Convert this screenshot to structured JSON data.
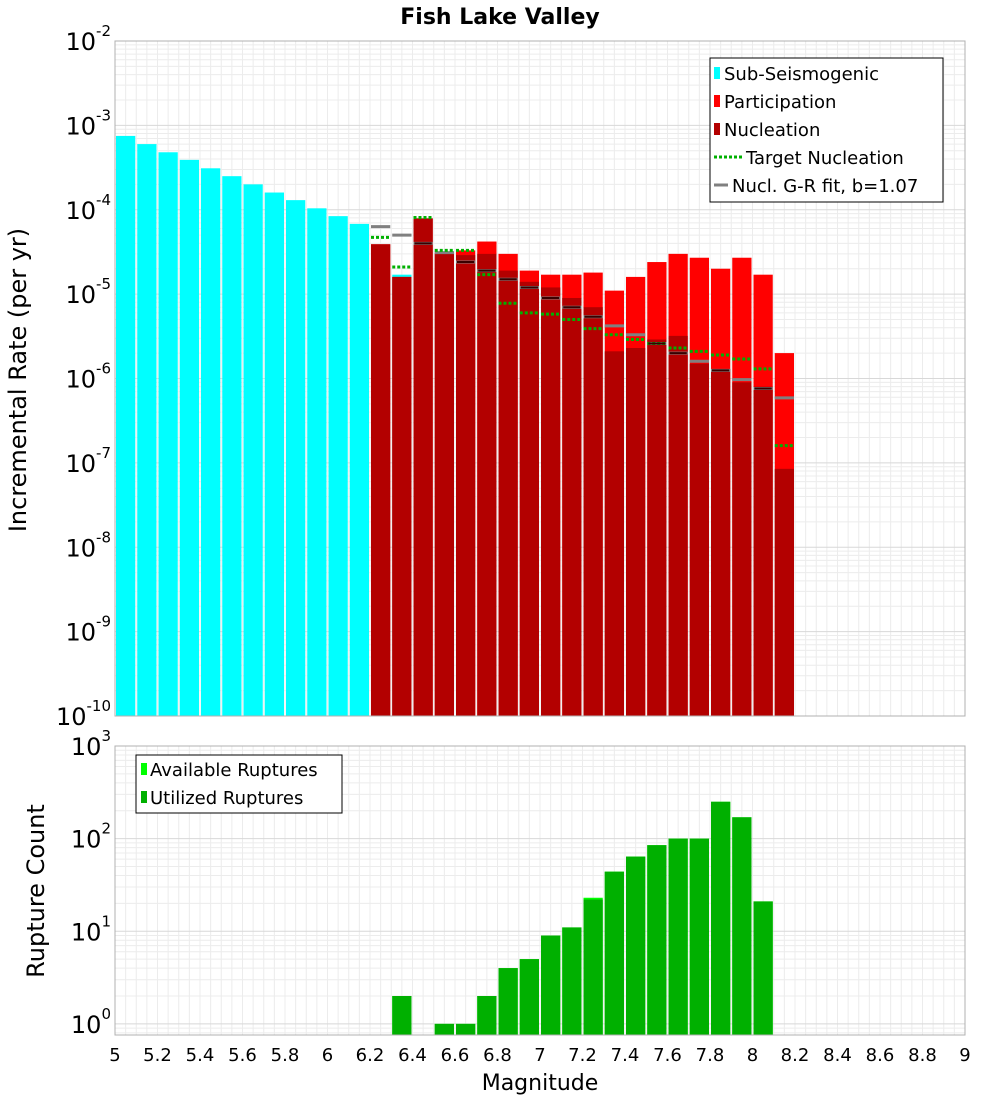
{
  "chart_data": [
    {
      "type": "bar",
      "title": "Fish Lake Valley",
      "ylabel": "Incremental Rate (per yr)",
      "xlim": [
        5,
        9
      ],
      "ylim_log10": [
        -10,
        -2
      ],
      "ytick_labels": [
        "10^-10",
        "10^-9",
        "10^-8",
        "10^-7",
        "10^-6",
        "10^-5",
        "10^-4",
        "10^-3",
        "10^-2"
      ],
      "bin_width": 0.1,
      "series": [
        {
          "name": "Sub-Seismogenic",
          "color": "#00ffff",
          "x": [
            5.05,
            5.15,
            5.25,
            5.35,
            5.45,
            5.55,
            5.65,
            5.75,
            5.85,
            5.95,
            6.05,
            6.15,
            6.35
          ],
          "values": [
            0.00075,
            0.0006,
            0.00048,
            0.00039,
            0.00031,
            0.00025,
            0.0002,
            0.00016,
            0.00013,
            0.000104,
            8.4e-05,
            6.8e-05,
            1.7e-05
          ]
        },
        {
          "name": "Participation",
          "color": "#ff0000",
          "x": [
            6.25,
            6.35,
            6.45,
            6.55,
            6.65,
            6.75,
            6.85,
            6.95,
            7.05,
            7.15,
            7.25,
            7.35,
            7.45,
            7.55,
            7.65,
            7.75,
            7.85,
            7.95,
            8.05,
            8.15
          ],
          "values": [
            3.9e-05,
            1.6e-05,
            7.9e-05,
            3.1e-05,
            3.3e-05,
            4.2e-05,
            3e-05,
            1.9e-05,
            1.7e-05,
            1.7e-05,
            1.8e-05,
            1.1e-05,
            1.6e-05,
            2.4e-05,
            3e-05,
            2.7e-05,
            2e-05,
            2.7e-05,
            1.7e-05,
            2e-06
          ]
        },
        {
          "name": "Nucleation",
          "color": "#b30000",
          "x": [
            6.25,
            6.35,
            6.45,
            6.55,
            6.65,
            6.75,
            6.85,
            6.95,
            7.05,
            7.15,
            7.25,
            7.35,
            7.45,
            7.55,
            7.65,
            7.75,
            7.85,
            7.95,
            8.05,
            8.15
          ],
          "values": [
            3.9e-05,
            1.6e-05,
            7.9e-05,
            3e-05,
            2.9e-05,
            3e-05,
            1.9e-05,
            1.4e-05,
            1.2e-05,
            9e-06,
            7e-06,
            2.1e-06,
            2.3e-06,
            2.9e-06,
            3.2e-06,
            1.5e-06,
            1.3e-06,
            9e-07,
            8e-07,
            8.5e-08
          ]
        },
        {
          "name": "Target Nucleation",
          "color": "#00b000",
          "style": "dotted",
          "x": [
            6.25,
            6.35,
            6.45,
            6.55,
            6.65,
            6.75,
            6.85,
            6.95,
            7.05,
            7.15,
            7.25,
            7.35,
            7.45,
            7.55,
            7.65,
            7.75,
            7.85,
            7.95,
            8.05,
            8.15
          ],
          "values": [
            4.7e-05,
            2.1e-05,
            8.1e-05,
            3.3e-05,
            3.3e-05,
            1.7e-05,
            7.8e-06,
            6e-06,
            5.8e-06,
            5e-06,
            3.9e-06,
            3.3e-06,
            2.9e-06,
            2.6e-06,
            2.3e-06,
            2.1e-06,
            1.9e-06,
            1.7e-06,
            1.3e-06,
            1.6e-07
          ]
        },
        {
          "name": "Nucl. G-R fit, b=1.07",
          "color": "#808080",
          "style": "solid",
          "x": [
            6.25,
            6.35,
            6.45,
            6.55,
            6.65,
            6.75,
            6.85,
            6.95,
            7.05,
            7.15,
            7.25,
            7.35,
            7.45,
            7.55,
            7.65,
            7.75,
            7.85,
            7.95,
            8.05,
            8.15
          ],
          "values": [
            6.3e-05,
            5e-05,
            4e-05,
            3.1e-05,
            2.4e-05,
            1.9e-05,
            1.5e-05,
            1.2e-05,
            9e-06,
            7e-06,
            5.4e-06,
            4.2e-06,
            3.3e-06,
            2.6e-06,
            2e-06,
            1.6e-06,
            1.25e-06,
            9.7e-07,
            7.6e-07,
            5.9e-07
          ]
        }
      ],
      "legend_position": "top-right"
    },
    {
      "type": "bar",
      "ylabel": "Rupture Count",
      "xlabel": "Magnitude",
      "xlim": [
        5,
        9
      ],
      "ylim_log10": [
        -0.12,
        3
      ],
      "ytick_labels": [
        "10^0",
        "10^1",
        "10^2",
        "10^3"
      ],
      "xtick_labels": [
        "5",
        "5.2",
        "5.4",
        "5.6",
        "5.8",
        "6",
        "6.2",
        "6.4",
        "6.6",
        "6.8",
        "7",
        "7.2",
        "7.4",
        "7.6",
        "7.8",
        "8",
        "8.2",
        "8.4",
        "8.6",
        "8.8",
        "9"
      ],
      "bin_width": 0.1,
      "series": [
        {
          "name": "Available Ruptures",
          "color": "#00ff00",
          "x": [
            6.35,
            6.55,
            6.65,
            6.75,
            6.85,
            6.95,
            7.05,
            7.15,
            7.25,
            7.35,
            7.45,
            7.55,
            7.65,
            7.75,
            7.85,
            7.95,
            8.05
          ],
          "values": [
            2,
            1,
            1,
            2,
            4,
            5,
            9,
            11,
            23,
            44,
            64,
            85,
            100,
            100,
            250,
            170,
            21
          ]
        },
        {
          "name": "Utilized Ruptures",
          "color": "#00b000",
          "x": [
            6.35,
            6.55,
            6.65,
            6.75,
            6.85,
            6.95,
            7.05,
            7.15,
            7.25,
            7.35,
            7.45,
            7.55,
            7.65,
            7.75,
            7.85,
            7.95,
            8.05
          ],
          "values": [
            2,
            1,
            1,
            2,
            4,
            5,
            9,
            11,
            22,
            44,
            64,
            85,
            100,
            100,
            250,
            170,
            21
          ]
        }
      ],
      "legend_position": "top-left"
    }
  ]
}
